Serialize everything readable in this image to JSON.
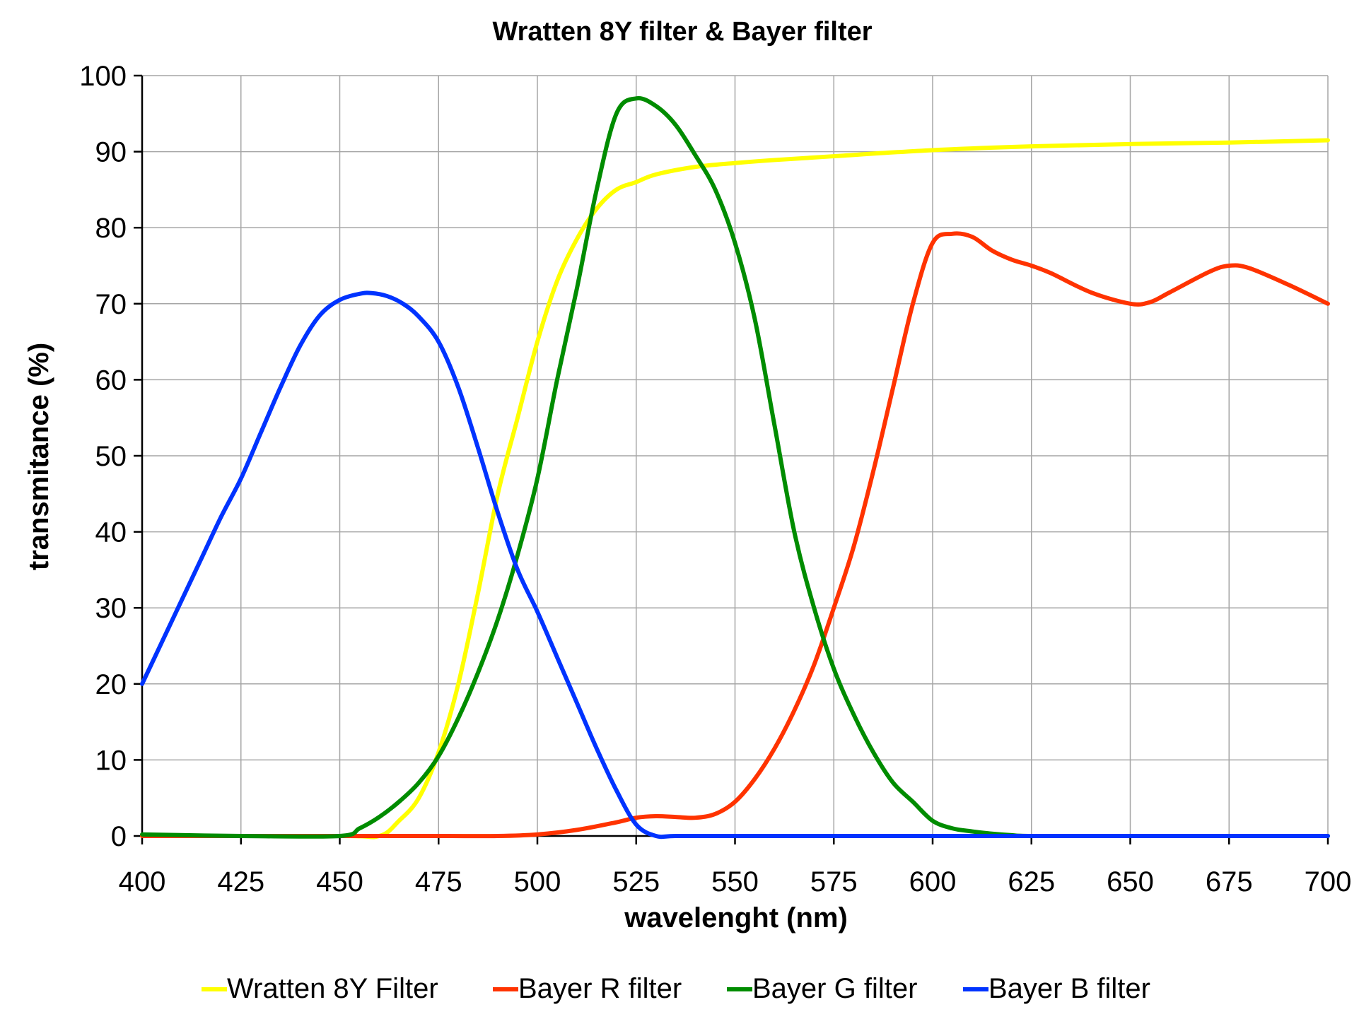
{
  "chart_data": {
    "type": "line",
    "title": "Wratten 8Y filter & Bayer filter",
    "xlabel": "wavelenght (nm)",
    "ylabel": "transmitance (%)",
    "xlim": [
      400,
      700
    ],
    "ylim": [
      0,
      100
    ],
    "x_ticks": [
      400,
      425,
      450,
      475,
      500,
      525,
      550,
      575,
      600,
      625,
      650,
      675,
      700
    ],
    "y_ticks": [
      0,
      10,
      20,
      30,
      40,
      50,
      60,
      70,
      80,
      90,
      100
    ],
    "grid": true,
    "legend_position": "bottom",
    "series": [
      {
        "name": "Wratten 8Y Filter",
        "color": "#ffff00",
        "x": [
          400,
          450,
          460,
          465,
          470,
          475,
          480,
          485,
          490,
          495,
          500,
          505,
          510,
          515,
          520,
          525,
          530,
          540,
          550,
          560,
          575,
          600,
          625,
          650,
          675,
          700
        ],
        "y": [
          0,
          0,
          0,
          2,
          5,
          11,
          20,
          32,
          45,
          55,
          65,
          73,
          78.5,
          82.5,
          85,
          86,
          87,
          88,
          88.5,
          88.9,
          89.4,
          90.2,
          90.7,
          91,
          91.2,
          91.5
        ]
      },
      {
        "name": "Bayer R filter",
        "color": "#ff3300",
        "x": [
          400,
          450,
          475,
          490,
          500,
          510,
          520,
          525,
          530,
          535,
          540,
          545,
          550,
          555,
          560,
          565,
          570,
          575,
          580,
          585,
          590,
          595,
          600,
          605,
          610,
          615,
          620,
          625,
          630,
          640,
          650,
          655,
          660,
          670,
          675,
          680,
          690,
          700
        ],
        "y": [
          0,
          0,
          0,
          0,
          0.2,
          0.8,
          1.8,
          2.4,
          2.6,
          2.5,
          2.4,
          2.9,
          4.5,
          7.5,
          11.5,
          16.5,
          22.5,
          30,
          38,
          48,
          59,
          70,
          78,
          79.2,
          78.8,
          77,
          75.8,
          75,
          74,
          71.5,
          70,
          70.2,
          71.5,
          74.2,
          75,
          74.7,
          72.5,
          70
        ]
      },
      {
        "name": "Bayer G filter",
        "color": "#008c00",
        "x": [
          400,
          425,
          450,
          455,
          460,
          465,
          470,
          475,
          480,
          485,
          490,
          495,
          500,
          505,
          510,
          515,
          520,
          525,
          530,
          535,
          540,
          545,
          550,
          555,
          560,
          565,
          570,
          575,
          580,
          585,
          590,
          595,
          600,
          605,
          610,
          615,
          620,
          625,
          650,
          700
        ],
        "y": [
          0.2,
          0,
          0,
          1,
          2.5,
          4.5,
          7,
          10.5,
          15.5,
          21.5,
          28.5,
          37,
          47,
          60,
          72,
          85,
          95,
          97,
          96,
          93.5,
          89.5,
          85,
          78,
          68,
          54,
          40,
          30,
          22,
          16,
          11,
          7,
          4.5,
          2,
          1,
          0.6,
          0.3,
          0.1,
          0,
          0,
          0
        ]
      },
      {
        "name": "Bayer B filter",
        "color": "#0033ff",
        "x": [
          400,
          405,
          410,
          415,
          420,
          425,
          430,
          435,
          440,
          445,
          450,
          455,
          458,
          462,
          466,
          470,
          475,
          480,
          485,
          490,
          495,
          500,
          505,
          510,
          515,
          520,
          525,
          530,
          535,
          550,
          575,
          600,
          650,
          700
        ],
        "y": [
          20,
          25.5,
          31,
          36.5,
          42,
          47,
          53,
          59,
          64.5,
          68.5,
          70.5,
          71.3,
          71.4,
          71,
          70,
          68.3,
          65,
          59,
          51,
          42.5,
          35,
          29.5,
          23.5,
          17.5,
          11.5,
          6,
          1.5,
          0,
          0,
          0,
          0,
          0,
          0,
          0
        ]
      }
    ]
  }
}
